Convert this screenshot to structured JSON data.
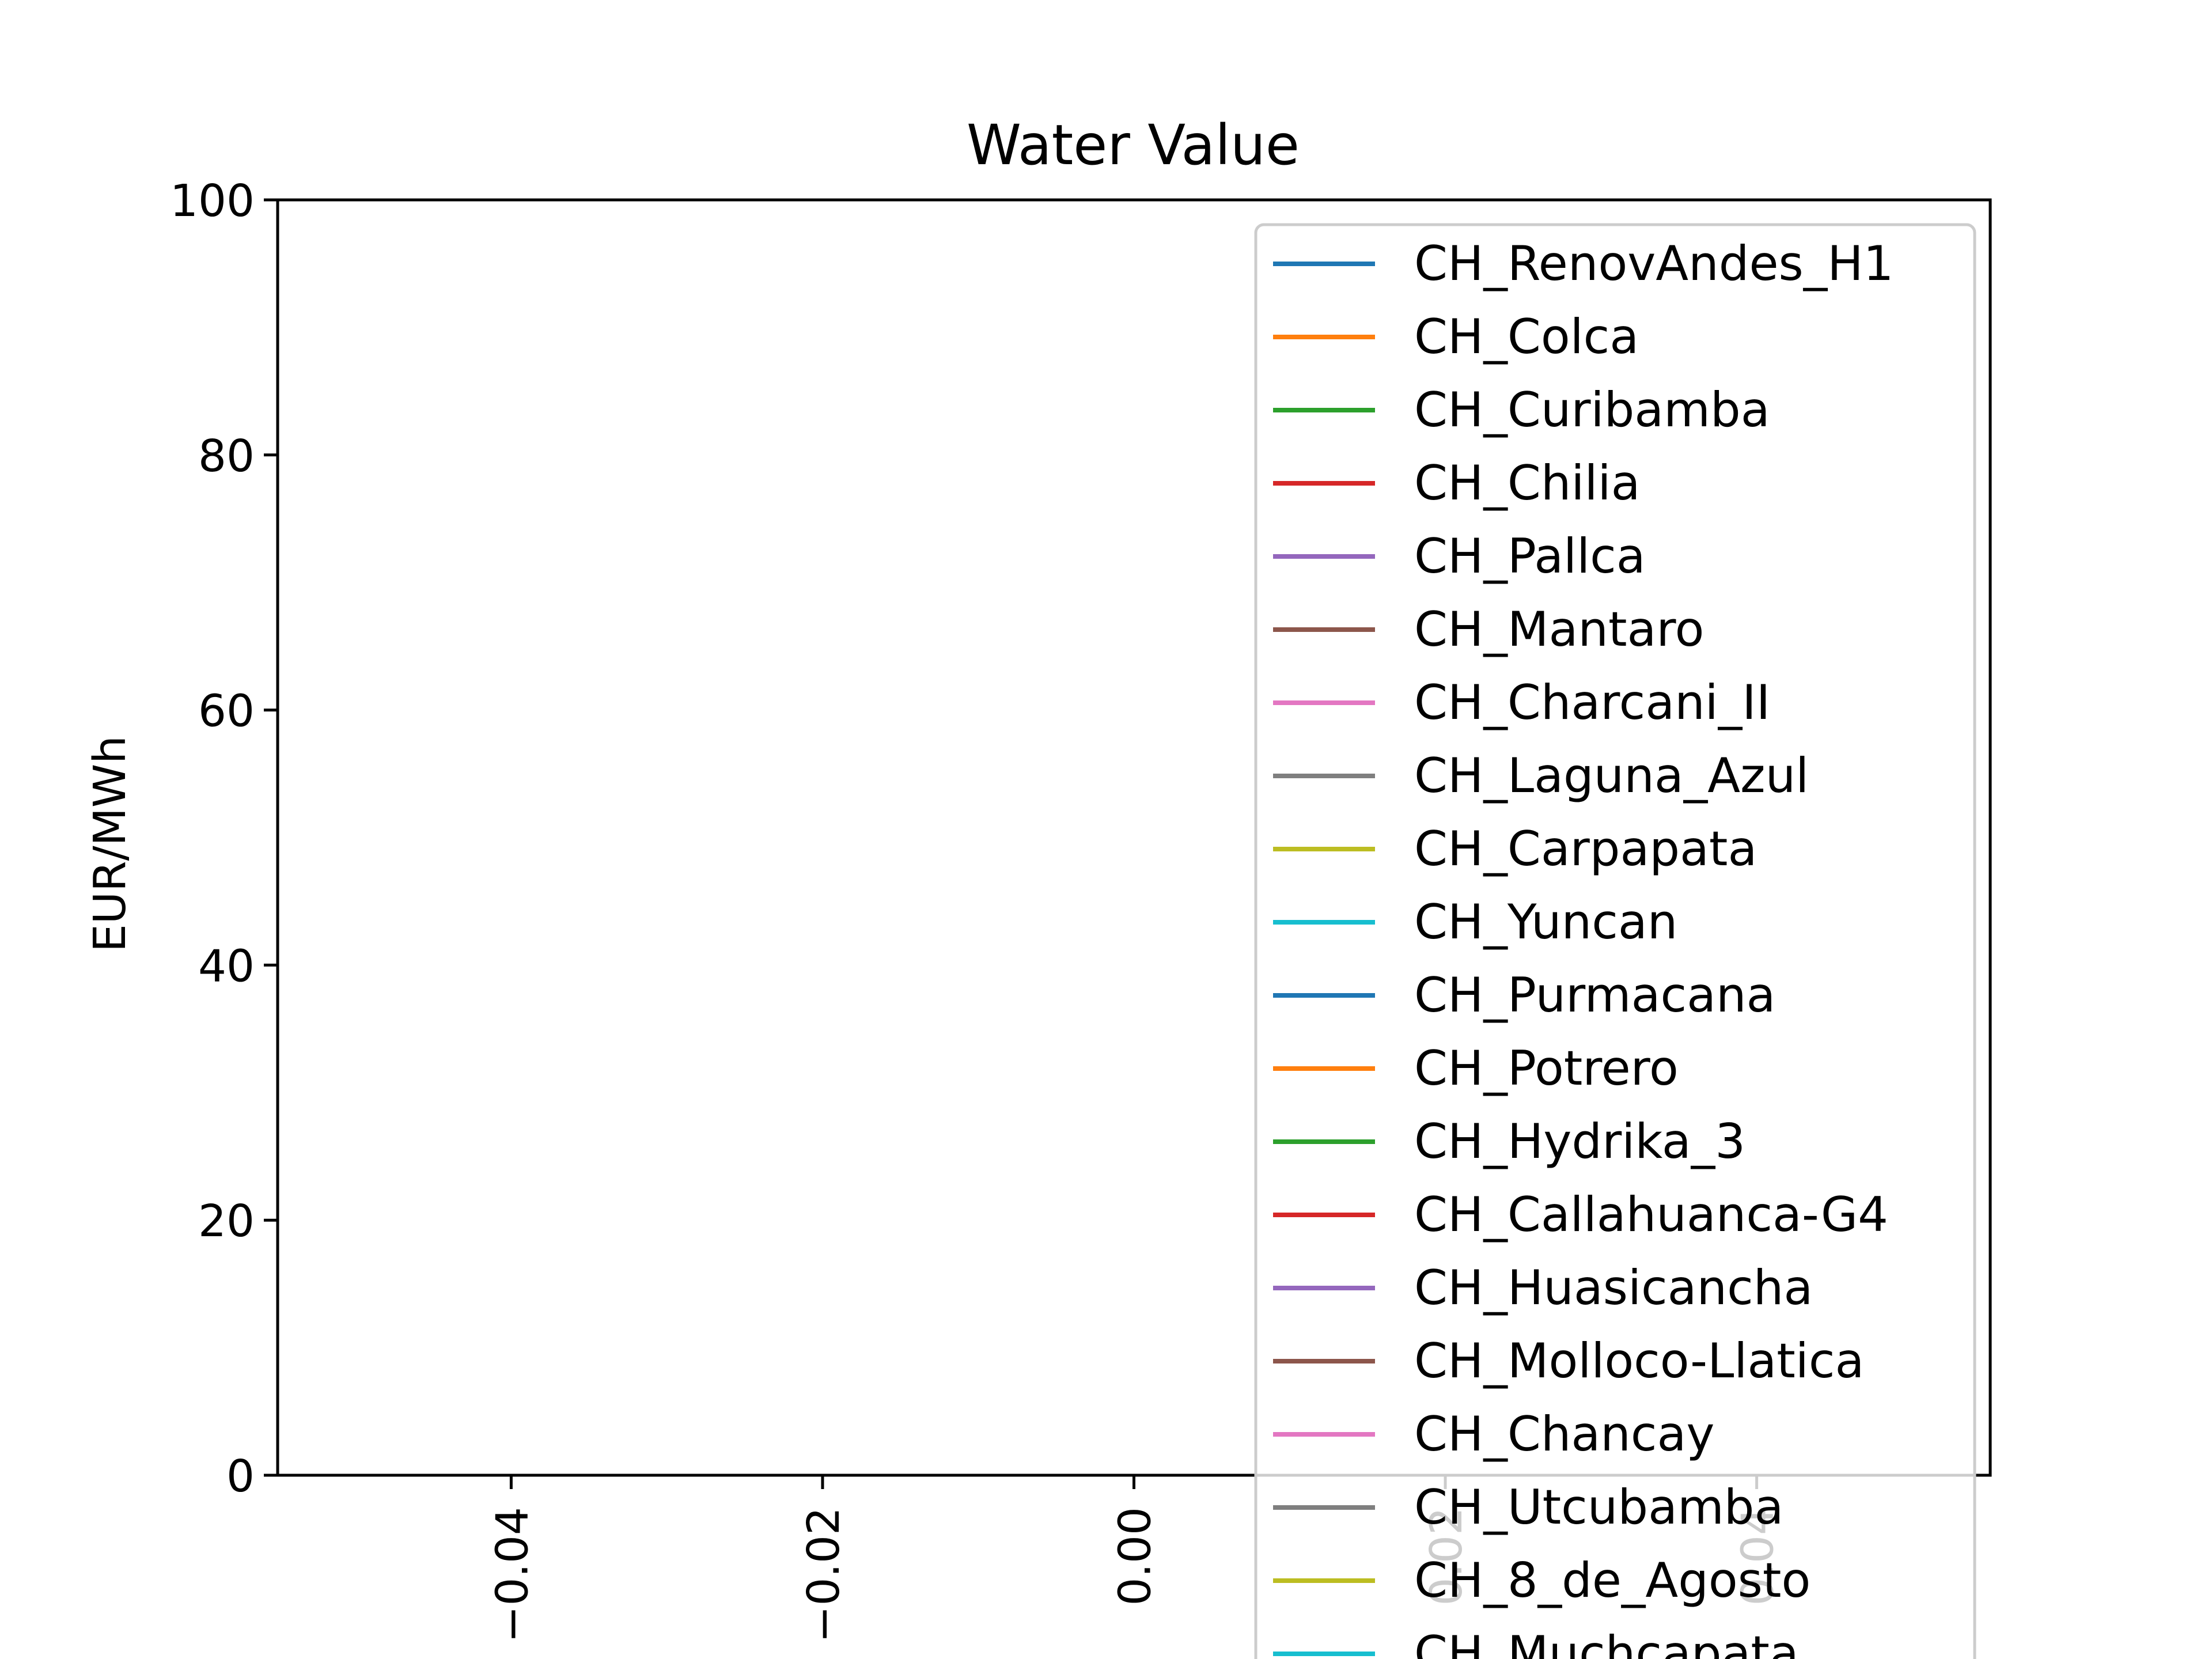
{
  "chart_data": {
    "type": "line",
    "title": "Water Value",
    "xlabel": "",
    "ylabel": "EUR/MWh",
    "xlim": [
      -0.055,
      0.055
    ],
    "ylim": [
      0,
      100
    ],
    "x_ticks": [
      "−0.04",
      "−0.02",
      "0.00",
      "0.02",
      "0.04"
    ],
    "x_tick_values": [
      -0.04,
      -0.02,
      0.0,
      0.02,
      0.04
    ],
    "y_ticks": [
      "0",
      "20",
      "40",
      "60",
      "80",
      "100"
    ],
    "y_tick_values": [
      0,
      20,
      40,
      60,
      80,
      100
    ],
    "grid": false,
    "legend_position": "upper-right",
    "series": [
      {
        "name": "CH_RenovAndes_H1",
        "color": "#1f77b4",
        "values": []
      },
      {
        "name": "CH_Colca",
        "color": "#ff7f0e",
        "values": []
      },
      {
        "name": "CH_Curibamba",
        "color": "#2ca02c",
        "values": []
      },
      {
        "name": "CH_Chilia",
        "color": "#d62728",
        "values": []
      },
      {
        "name": "CH_Pallca",
        "color": "#9467bd",
        "values": []
      },
      {
        "name": "CH_Mantaro",
        "color": "#8c564b",
        "values": []
      },
      {
        "name": "CH_Charcani_II",
        "color": "#e377c2",
        "values": []
      },
      {
        "name": "CH_Laguna_Azul",
        "color": "#7f7f7f",
        "values": []
      },
      {
        "name": "CH_Carpapata",
        "color": "#bcbd22",
        "values": []
      },
      {
        "name": "CH_Yuncan",
        "color": "#17becf",
        "values": []
      },
      {
        "name": "CH_Purmacana",
        "color": "#1f77b4",
        "values": []
      },
      {
        "name": "CH_Potrero",
        "color": "#ff7f0e",
        "values": []
      },
      {
        "name": "CH_Hydrika_3",
        "color": "#2ca02c",
        "values": []
      },
      {
        "name": "CH_Callahuanca-G4",
        "color": "#d62728",
        "values": []
      },
      {
        "name": "CH_Huasicancha",
        "color": "#9467bd",
        "values": []
      },
      {
        "name": "CH_Molloco-Llatica",
        "color": "#8c564b",
        "values": []
      },
      {
        "name": "CH_Chancay",
        "color": "#e377c2",
        "values": []
      },
      {
        "name": "CH_Utcubamba",
        "color": "#7f7f7f",
        "values": []
      },
      {
        "name": "CH_8_de_Agosto",
        "color": "#bcbd22",
        "values": []
      },
      {
        "name": "CH_Muchcapata",
        "color": "#17becf",
        "values": []
      }
    ]
  }
}
